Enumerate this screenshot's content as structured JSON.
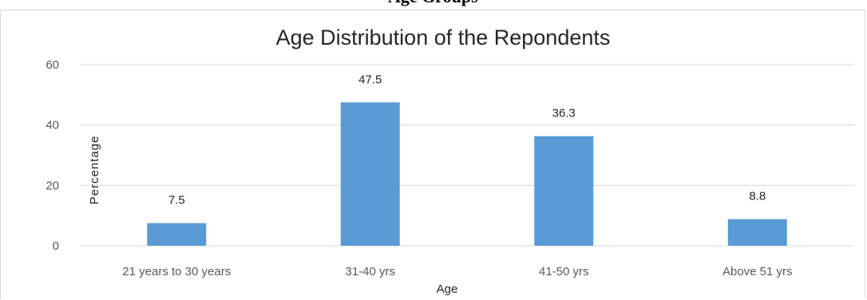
{
  "chart_data": {
    "type": "bar",
    "title": "Age Distribution of the Repondents",
    "xlabel": "Age",
    "ylabel": "Percentage",
    "categories": [
      "21 years to 30 years",
      "31-40 yrs",
      "41-50 yrs",
      "Above 51 yrs"
    ],
    "values": [
      7.5,
      47.5,
      36.3,
      8.8
    ],
    "data_labels": [
      "7.5",
      "47.5",
      "36.3",
      "8.8"
    ],
    "ylim": [
      0,
      60
    ],
    "yticks": [
      "0",
      "20",
      "40",
      "60"
    ],
    "grid": true,
    "legend": "none",
    "bar_color": "#5b9bd5",
    "gridline_color": "#d9d9d9"
  },
  "page": {
    "heading_fragment": "Age Groups"
  }
}
